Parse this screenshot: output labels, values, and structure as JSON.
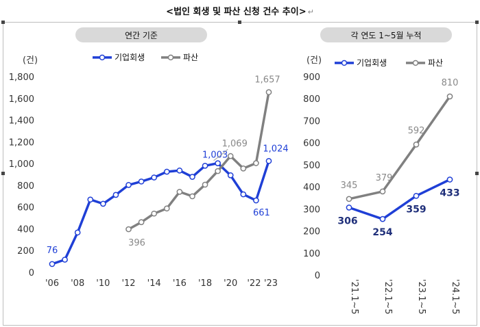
{
  "page_title": "<법인 회생 및 파산 신청 건수 추이>",
  "return_mark": "↵",
  "colors": {
    "rehab": "#1f3fd6",
    "bankruptcy": "#808080",
    "pill": "#d9d9d9",
    "navy_label": "#1f2f7a"
  },
  "chart_data": [
    {
      "type": "line",
      "title": "연간 기준",
      "ylabel": "(건)",
      "ylim": [
        0,
        1800
      ],
      "yticks": [
        0,
        200,
        400,
        600,
        800,
        1000,
        1200,
        1400,
        1600,
        1800
      ],
      "ytick_labels": [
        "0",
        "200",
        "400",
        "600",
        "800",
        "1,000",
        "1,200",
        "1,400",
        "1,600",
        "1,800"
      ],
      "x": [
        2006,
        2007,
        2008,
        2009,
        2010,
        2011,
        2012,
        2013,
        2014,
        2015,
        2016,
        2017,
        2018,
        2019,
        2020,
        2021,
        2022,
        2023
      ],
      "xlim": [
        2006,
        2023
      ],
      "xticks": [
        2006,
        2008,
        2010,
        2012,
        2014,
        2016,
        2018,
        2020,
        2022,
        2023
      ],
      "xtick_labels": [
        "'06",
        "'08",
        "'10",
        "'12",
        "'14",
        "'16",
        "'18",
        "'20",
        "'22",
        "'23"
      ],
      "legend": "top",
      "series": [
        {
          "name": "기업회생",
          "values": [
            76,
            116,
            366,
            669,
            630,
            712,
            803,
            835,
            872,
            925,
            936,
            878,
            980,
            1003,
            892,
            717,
            661,
            1024
          ]
        },
        {
          "name": "파산",
          "values": [
            null,
            null,
            null,
            null,
            null,
            null,
            396,
            461,
            540,
            587,
            740,
            699,
            806,
            931,
            1069,
            955,
            1004,
            1657
          ]
        }
      ],
      "annotations": [
        {
          "series": 0,
          "index": 0,
          "text": "76"
        },
        {
          "series": 0,
          "index": 13,
          "text": "1,003"
        },
        {
          "series": 0,
          "index": 16,
          "text": "661"
        },
        {
          "series": 0,
          "index": 17,
          "text": "1,024"
        },
        {
          "series": 1,
          "index": 6,
          "text": "396"
        },
        {
          "series": 1,
          "index": 14,
          "text": "1,069"
        },
        {
          "series": 1,
          "index": 17,
          "text": "1,657"
        }
      ]
    },
    {
      "type": "line",
      "title": "각 연도 1~5월 누적",
      "ylabel": "(건)",
      "ylim": [
        0,
        900
      ],
      "yticks": [
        0,
        100,
        200,
        300,
        400,
        500,
        600,
        700,
        800,
        900
      ],
      "ytick_labels": [
        "0",
        "100",
        "200",
        "300",
        "400",
        "500",
        "600",
        "700",
        "800",
        "900"
      ],
      "categories": [
        "'21.1~5",
        "'22.1~5",
        "'23.1~5",
        "'24.1~5"
      ],
      "legend": "top",
      "series": [
        {
          "name": "기업회생",
          "values": [
            306,
            254,
            359,
            433
          ]
        },
        {
          "name": "파산",
          "values": [
            345,
            379,
            592,
            810
          ]
        }
      ],
      "annotations": [
        {
          "series": 0,
          "index": 0,
          "text": "306"
        },
        {
          "series": 0,
          "index": 1,
          "text": "254"
        },
        {
          "series": 0,
          "index": 2,
          "text": "359"
        },
        {
          "series": 0,
          "index": 3,
          "text": "433"
        },
        {
          "series": 1,
          "index": 0,
          "text": "345"
        },
        {
          "series": 1,
          "index": 1,
          "text": "379"
        },
        {
          "series": 1,
          "index": 2,
          "text": "592"
        },
        {
          "series": 1,
          "index": 3,
          "text": "810"
        }
      ]
    }
  ]
}
